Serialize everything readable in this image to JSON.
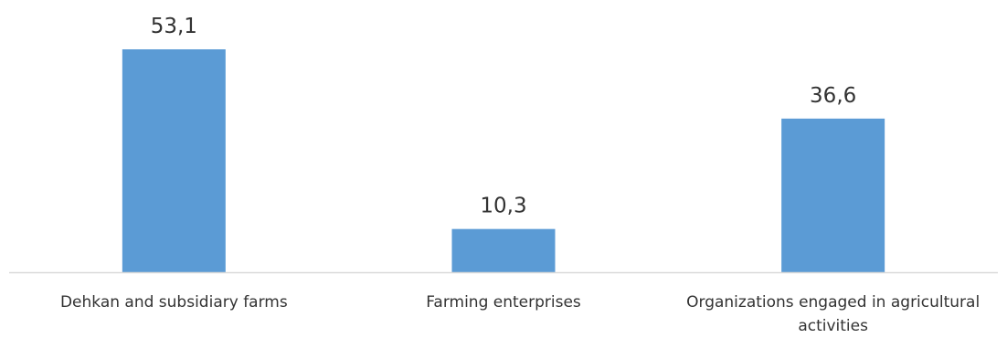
{
  "chart_data": {
    "type": "bar",
    "categories": [
      [
        "Dehkan and subsidiary farms"
      ],
      [
        "Farming enterprises"
      ],
      [
        "Organizations engaged in agricultural",
        "activities"
      ]
    ],
    "values": [
      53.1,
      10.3,
      36.6
    ],
    "value_labels": [
      "53,1",
      "10,3",
      "36,6"
    ],
    "title": "",
    "xlabel": "",
    "ylabel": "",
    "ylim": [
      0,
      53.1
    ],
    "grid": false,
    "legend": "none",
    "bar_color": "#5B9BD5",
    "axis_color": "#D9D9D9"
  }
}
